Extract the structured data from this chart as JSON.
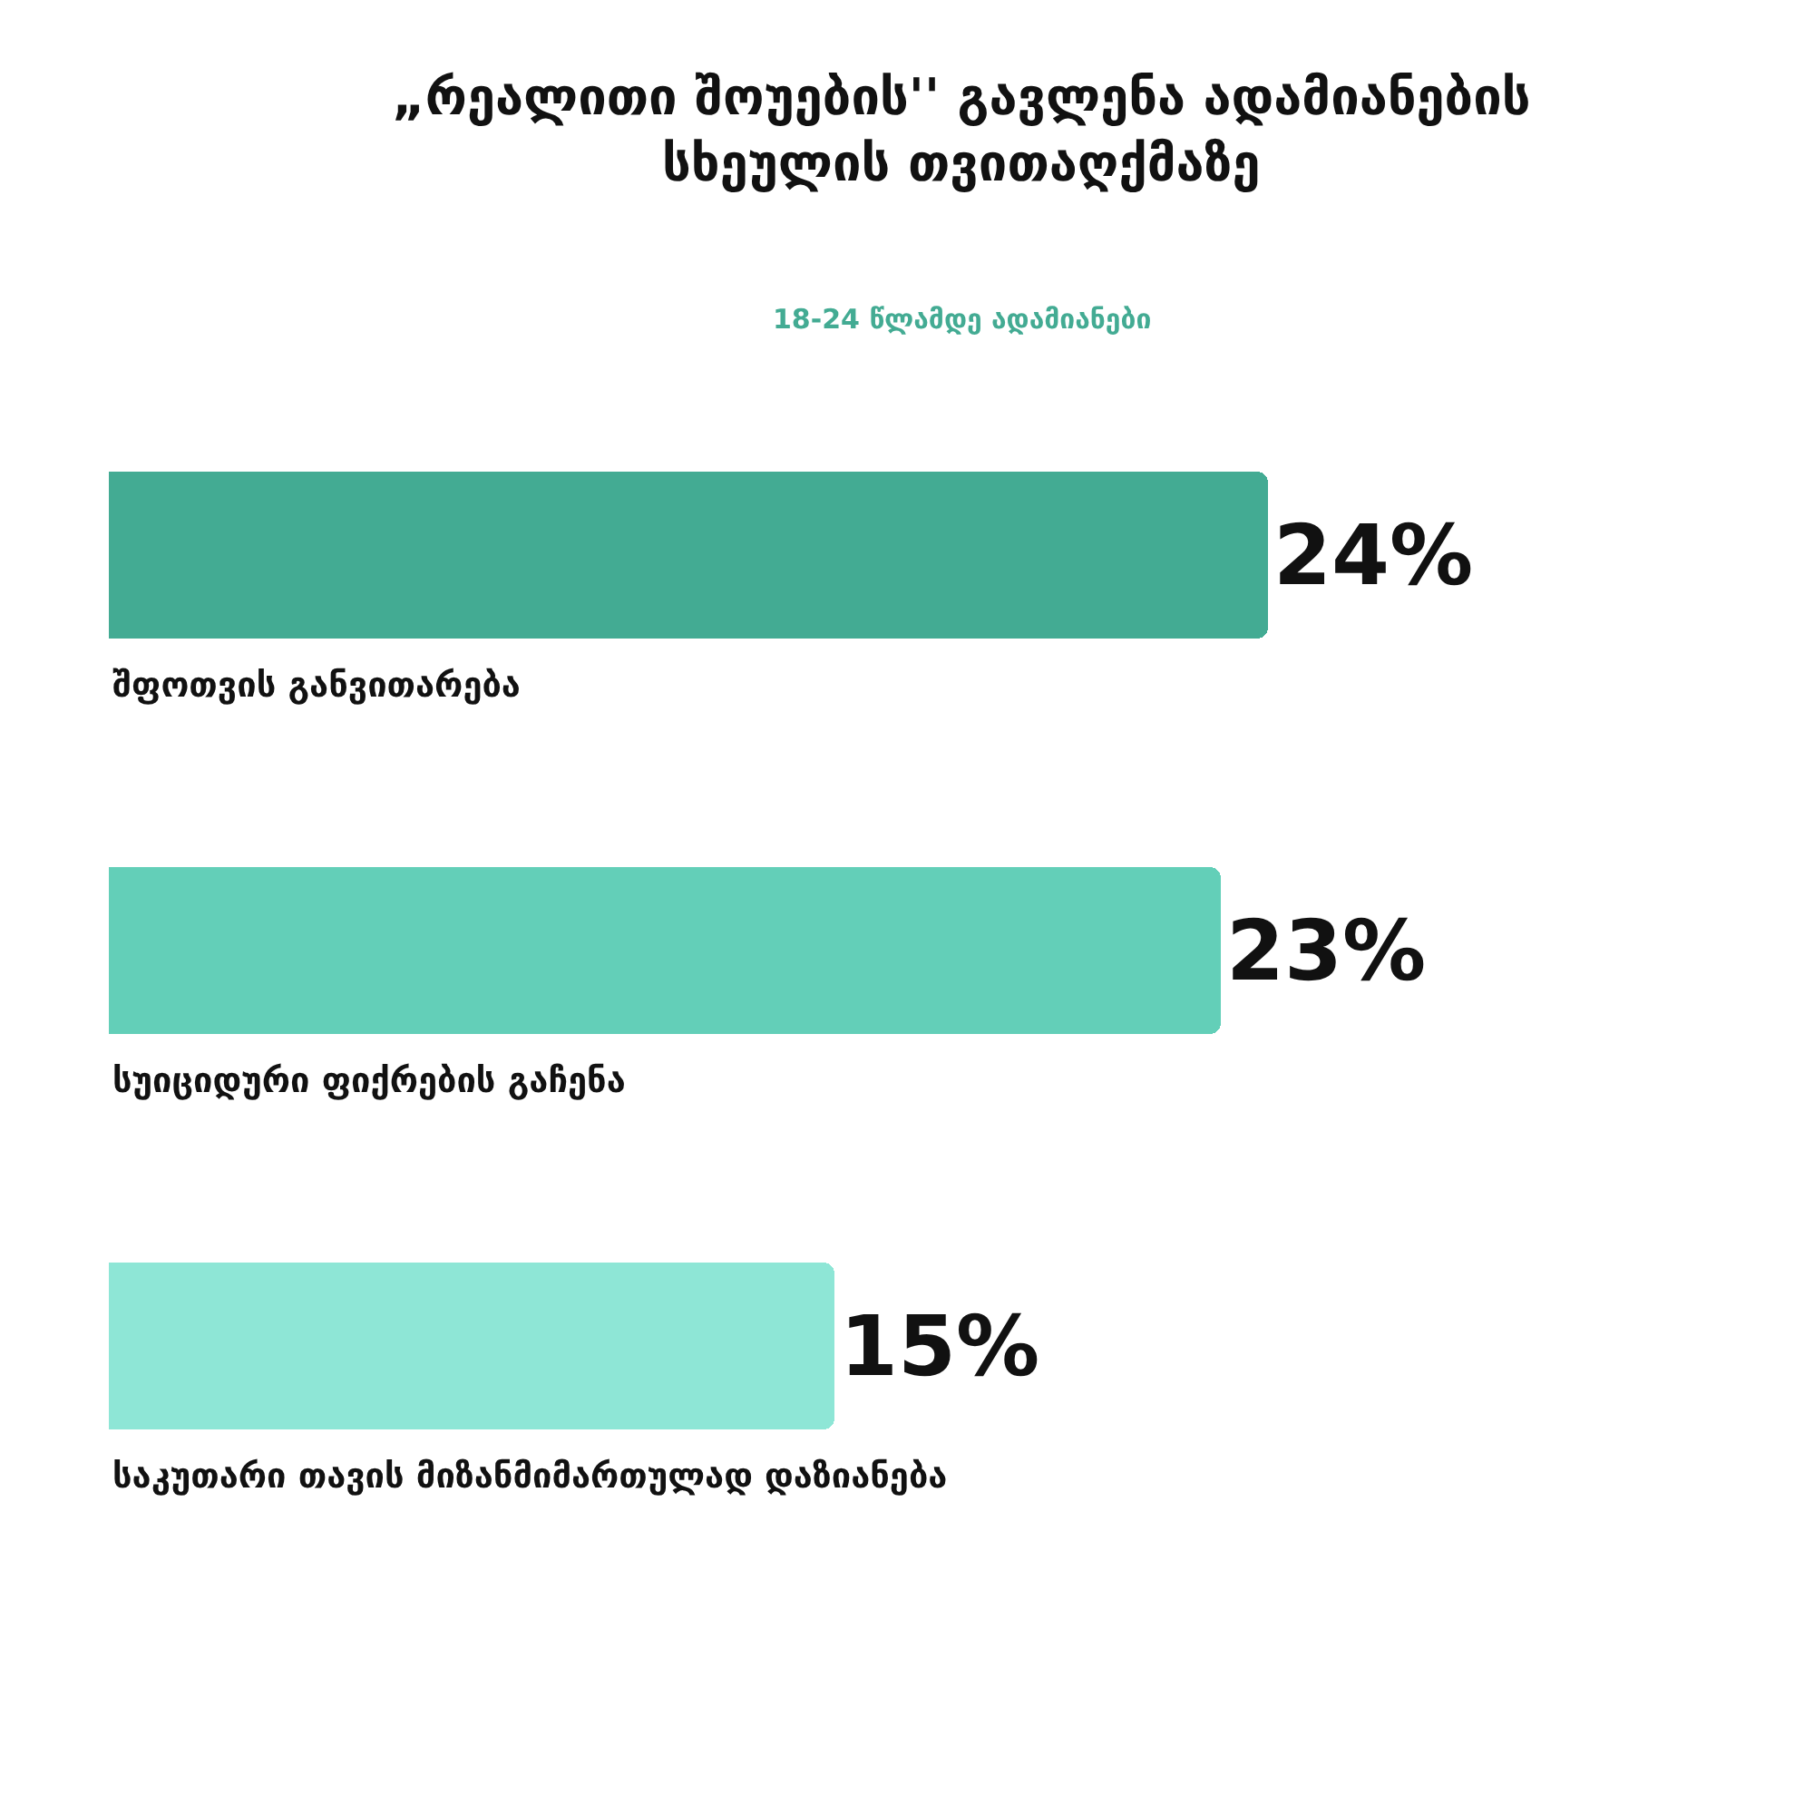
{
  "chart_data": {
    "type": "bar",
    "orientation": "horizontal",
    "title": "„რეალითი შოუების'' გავლენა ადამიანების სხეულის თვითაღქმაზე",
    "subtitle": "18-24 წლამდე ადამიანები",
    "categories": [
      "შფოთვის განვითარება",
      "სუიციდური ფიქრების გაჩენა",
      "საკუთარი თავის მიზანმიმართულად დაზიანება"
    ],
    "values": [
      24,
      23,
      15
    ],
    "value_labels": [
      "24%",
      "23%",
      "15%"
    ],
    "colors": [
      "#43ab93",
      "#63cfb8",
      "#8ee6d6"
    ],
    "legend": false
  }
}
